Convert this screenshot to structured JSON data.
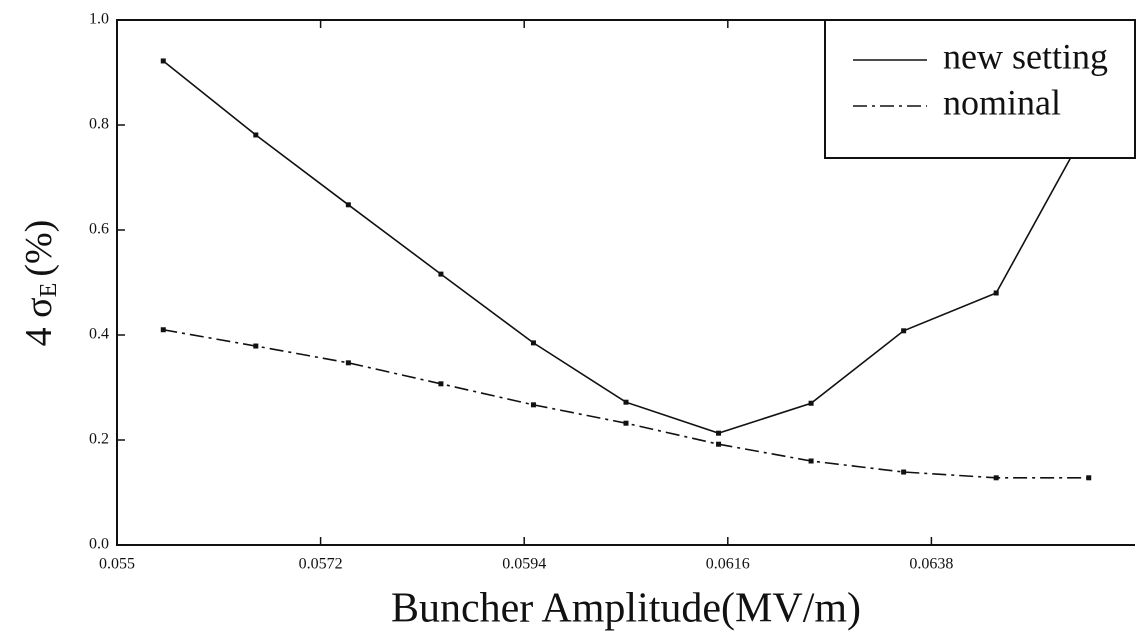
{
  "chart_data": {
    "type": "line",
    "xlabel": "Buncher Amplitude(MV/m)",
    "ylabel": {
      "main": "4 σ",
      "sub": "E",
      "unit": "(%)"
    },
    "x": [
      0.0555,
      0.0565,
      0.0575,
      0.0585,
      0.0595,
      0.0605,
      0.0615,
      0.0625,
      0.0635,
      0.0645,
      0.0655
    ],
    "series": [
      {
        "name": "new setting",
        "color": "#111111",
        "dash": "solid",
        "values": [
          0.922,
          0.781,
          0.648,
          0.516,
          0.385,
          0.272,
          0.213,
          0.27,
          0.408,
          0.48,
          0.8
        ]
      },
      {
        "name": "nominal",
        "color": "#111111",
        "dash": "dashdot",
        "values": [
          0.41,
          0.379,
          0.347,
          0.307,
          0.267,
          0.232,
          0.192,
          0.16,
          0.139,
          0.128,
          0.128
        ]
      }
    ],
    "xlim": [
      0.055,
      0.066
    ],
    "ylim": [
      0,
      1
    ],
    "xticks": [
      0.055,
      0.0572,
      0.0594,
      0.0616,
      0.0638
    ],
    "yticks": [
      {
        "value": 0,
        "label": "0.0"
      },
      0.2,
      0.4,
      0.6,
      0.8,
      {
        "value": 1,
        "label": "1.0"
      }
    ],
    "legend": "upper right"
  }
}
